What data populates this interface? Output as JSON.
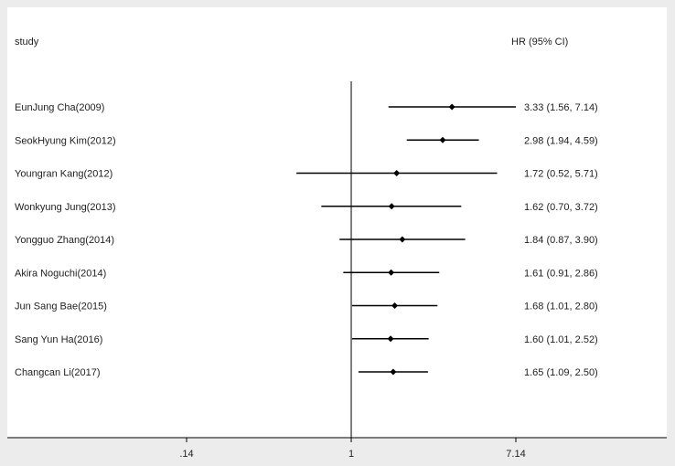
{
  "header": {
    "left_label": "study",
    "right_label": "HR (95% CI)"
  },
  "chart_data": {
    "type": "forest",
    "scale": "log",
    "reference_line": 1,
    "xlim": [
      0.14,
      7.14
    ],
    "x_ticks": [
      {
        "value": 0.14,
        "label": ".14"
      },
      {
        "value": 1,
        "label": "1"
      },
      {
        "value": 7.14,
        "label": "7.14"
      }
    ],
    "studies": [
      {
        "label": "EunJung Cha(2009)",
        "hr": 3.33,
        "lo": 1.56,
        "hi": 7.14,
        "ci_text": "3.33 (1.56, 7.14)"
      },
      {
        "label": "SeokHyung Kim(2012)",
        "hr": 2.98,
        "lo": 1.94,
        "hi": 4.59,
        "ci_text": "2.98 (1.94, 4.59)"
      },
      {
        "label": "Youngran Kang(2012)",
        "hr": 1.72,
        "lo": 0.52,
        "hi": 5.71,
        "ci_text": "1.72 (0.52, 5.71)"
      },
      {
        "label": "Wonkyung Jung(2013)",
        "hr": 1.62,
        "lo": 0.7,
        "hi": 3.72,
        "ci_text": "1.62 (0.70, 3.72)"
      },
      {
        "label": "Yongguo Zhang(2014)",
        "hr": 1.84,
        "lo": 0.87,
        "hi": 3.9,
        "ci_text": "1.84 (0.87, 3.90)"
      },
      {
        "label": "Akira Noguchi(2014)",
        "hr": 1.61,
        "lo": 0.91,
        "hi": 2.86,
        "ci_text": "1.61 (0.91, 2.86)"
      },
      {
        "label": "Jun Sang Bae(2015)",
        "hr": 1.68,
        "lo": 1.01,
        "hi": 2.8,
        "ci_text": "1.68 (1.01, 2.80)"
      },
      {
        "label": "Sang Yun Ha(2016)",
        "hr": 1.6,
        "lo": 1.01,
        "hi": 2.52,
        "ci_text": "1.60 (1.01, 2.52)"
      },
      {
        "label": "Changcan Li(2017)",
        "hr": 1.65,
        "lo": 1.09,
        "hi": 2.5,
        "ci_text": "1.65 (1.09, 2.50)"
      }
    ],
    "colors": {
      "line": "#000000",
      "panel": "#ffffff",
      "background": "#ececec",
      "text": "#222222"
    }
  }
}
